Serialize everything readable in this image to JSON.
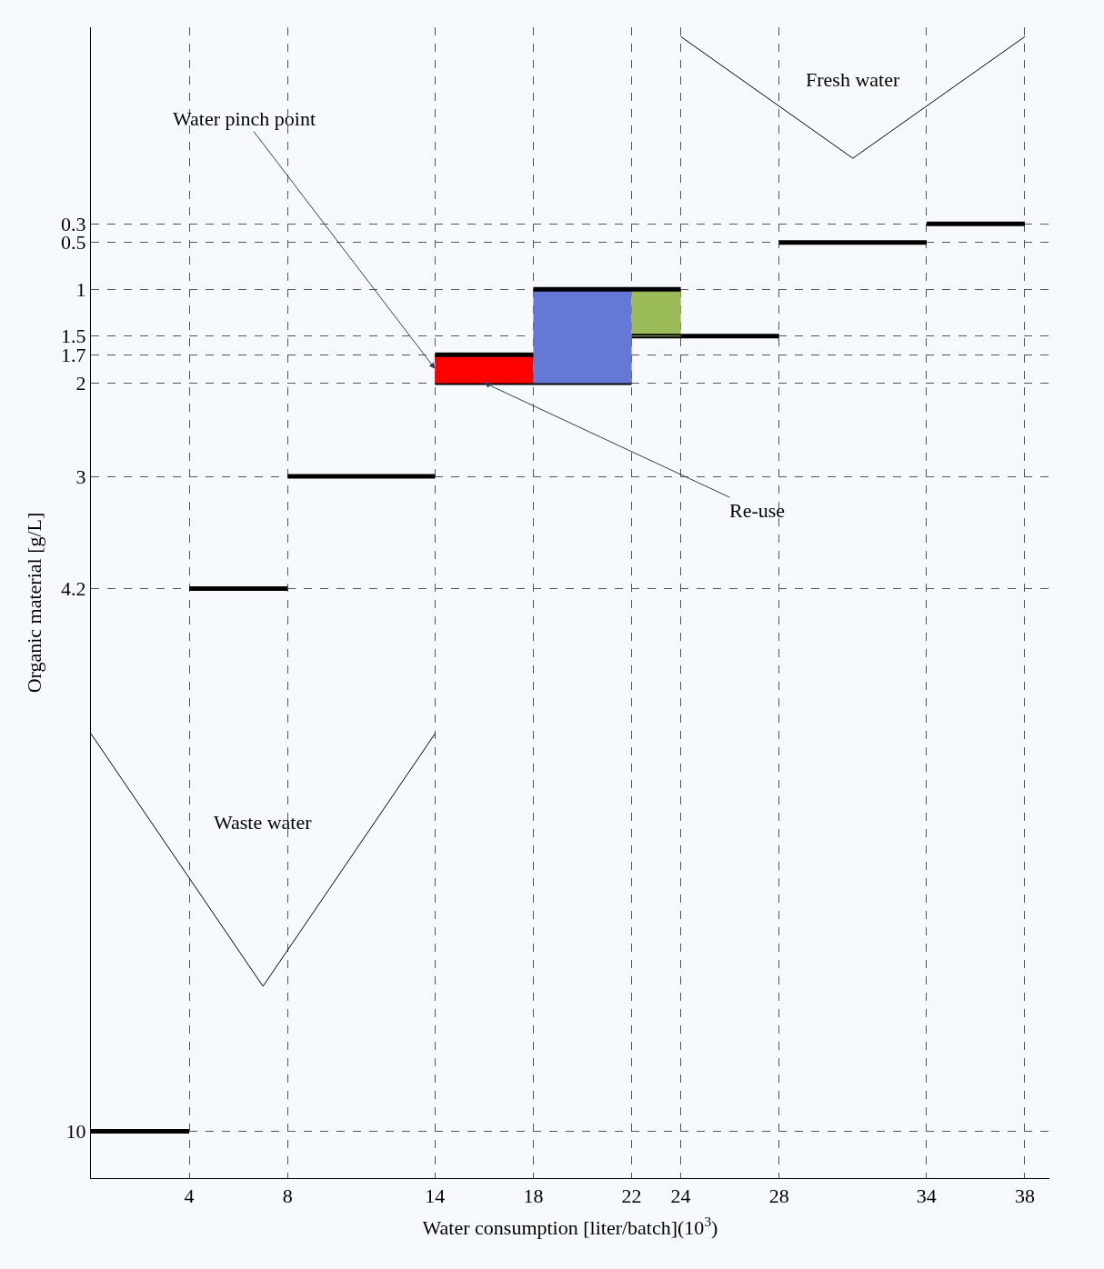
{
  "chart_data": {
    "type": "line",
    "xlabel": "Water consumption [liter/batch](10$^{3}$)",
    "ylabel": "Organic material [g/L]",
    "xlim": [
      0,
      39
    ],
    "ylim": [
      10.5,
      -1.8
    ],
    "xticks": [
      4,
      8,
      14,
      18,
      22,
      24,
      28,
      34,
      38
    ],
    "yticks": [
      0.3,
      0.5,
      1,
      1.5,
      1.7,
      2,
      3,
      4.2,
      10
    ],
    "grid": true,
    "legend": false,
    "line_style": "solid",
    "marker": "none",
    "series": [
      {
        "x": [
          0,
          4
        ],
        "values": [
          10,
          10
        ],
        "color": "#000000"
      },
      {
        "x": [
          4,
          8
        ],
        "values": [
          4.2,
          4.2
        ],
        "color": "#000000"
      },
      {
        "x": [
          8,
          14
        ],
        "values": [
          3,
          3
        ],
        "color": "#000000"
      },
      {
        "x": [
          14,
          22
        ],
        "values": [
          2,
          2
        ],
        "color": "#000000"
      },
      {
        "x": [
          14,
          18
        ],
        "values": [
          2,
          2
        ],
        "lower": [
          1.7,
          1.7
        ],
        "upper": [
          2,
          2
        ],
        "color": "#ff0000"
      },
      {
        "x": [
          18,
          22
        ],
        "values": [
          2,
          2
        ],
        "lower": [
          1,
          1
        ],
        "upper": [
          2,
          2
        ],
        "color": "#6678d6"
      },
      {
        "x": [
          22,
          24
        ],
        "values": [
          1.5,
          1.5
        ],
        "lower": [
          1,
          1
        ],
        "upper": [
          1.5,
          1.5
        ],
        "color": "#9bbb59"
      },
      {
        "x": [
          14,
          18
        ],
        "values": [
          1.7,
          1.7
        ],
        "color": "#000000"
      },
      {
        "x": [
          18,
          24
        ],
        "values": [
          1,
          1
        ],
        "color": "#000000"
      },
      {
        "x": [
          22,
          28
        ],
        "values": [
          1.5,
          1.5
        ],
        "color": "#000000"
      },
      {
        "x": [
          28,
          34
        ],
        "values": [
          0.5,
          0.5
        ],
        "color": "#000000"
      },
      {
        "x": [
          34,
          38
        ],
        "values": [
          0.3,
          0.3
        ],
        "color": "#000000"
      },
      {
        "name": "Fresh water",
        "x": [
          24,
          31,
          38
        ],
        "values": [
          -1.7,
          -0.4,
          -1.7
        ],
        "color": "#000000"
      },
      {
        "name": "Waste water",
        "x": [
          0,
          7,
          14
        ],
        "values": [
          5.75,
          8.45,
          5.75
        ],
        "color": "#000000"
      }
    ],
    "annotations": [
      {
        "text": "Water pinch point",
        "x": 14,
        "y": 1.85
      },
      {
        "text": "Re-use",
        "x": 16,
        "y": 2
      }
    ]
  }
}
